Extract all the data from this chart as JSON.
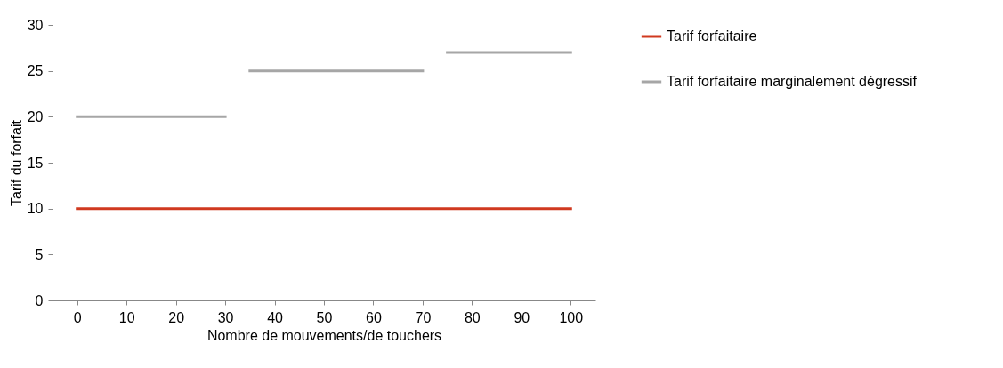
{
  "chart_data": {
    "type": "line",
    "xlabel": "Nombre de mouvements/de touchers",
    "ylabel": "Tarif du forfait",
    "xlim": [
      -5,
      105
    ],
    "xticks": [
      0,
      10,
      20,
      30,
      40,
      50,
      60,
      70,
      80,
      90,
      100
    ],
    "ylim": [
      0,
      30
    ],
    "yticks": [
      0,
      5,
      10,
      15,
      20,
      25,
      30
    ],
    "grid": false,
    "legend": "right",
    "marker": "none",
    "line_style": "solid",
    "series": [
      {
        "name": "Tarif forfaitaire",
        "color": "#d0391f",
        "x": [
          0,
          100
        ],
        "values": [
          10,
          10
        ]
      },
      {
        "name": "Tarif forfaitaire marginalement dégressif",
        "color": "#a6a6a6",
        "x": [
          0,
          30,
          33,
          35,
          70,
          73,
          75,
          100
        ],
        "values": [
          20,
          20,
          null,
          25,
          25,
          null,
          27,
          27
        ]
      }
    ]
  }
}
